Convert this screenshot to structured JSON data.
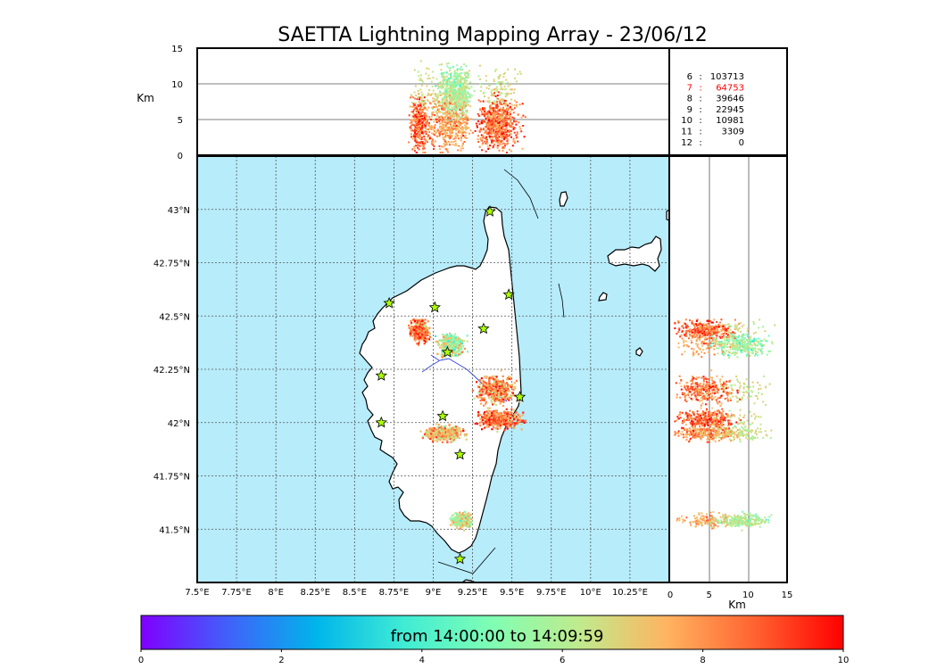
{
  "title": "SAETTA Lightning Mapping Array - 23/06/12",
  "colors": {
    "sea": "#b7ecfb",
    "land": "#ffffff",
    "coast": "#000000",
    "highlight": "#ff0000",
    "star": "#aaff00",
    "grid": "#555555"
  },
  "stats": [
    {
      "stations": "6",
      "count": "103713",
      "highlight": false
    },
    {
      "stations": "7",
      "count": "64753",
      "highlight": true
    },
    {
      "stations": "8",
      "count": "39646",
      "highlight": false
    },
    {
      "stations": "9",
      "count": "22945",
      "highlight": false
    },
    {
      "stations": "10",
      "count": "10981",
      "highlight": false
    },
    {
      "stations": "11",
      "count": "3309",
      "highlight": false
    },
    {
      "stations": "12",
      "count": "0",
      "highlight": false
    }
  ],
  "colorbar": {
    "label": "from 14:00:00 to 14:09:59",
    "ticks": [
      "0",
      "2",
      "4",
      "6",
      "8",
      "10"
    ],
    "range": [
      0,
      10
    ],
    "colors": [
      "#7f00ff",
      "#4062fa",
      "#00b5eb",
      "#40ecd4",
      "#80feb3",
      "#c0eb8d",
      "#ffb360",
      "#ff6230",
      "#ff0000"
    ]
  },
  "chart_data": [
    {
      "type": "scatter",
      "panel": "map (plan view)",
      "xlabel": "",
      "ylabel": "",
      "xlim": [
        7.5,
        10.5
      ],
      "ylim": [
        41.25,
        43.25
      ],
      "x_ticks": [
        7.5,
        7.75,
        8.0,
        8.25,
        8.5,
        8.75,
        9.0,
        9.25,
        9.5,
        9.75,
        10.0,
        10.25
      ],
      "x_tick_labels": [
        "7.5°E",
        "7.75°E",
        "8°E",
        "8.25°E",
        "8.5°E",
        "8.75°E",
        "9°E",
        "9.25°E",
        "9.5°E",
        "9.75°E",
        "10°E",
        "10.25°E"
      ],
      "y_ticks": [
        41.5,
        41.75,
        42.0,
        42.25,
        42.5,
        42.75,
        43.0
      ],
      "y_tick_labels": [
        "41.5°N",
        "41.75°N",
        "42°N",
        "42.25°N",
        "42.5°N",
        "42.75°N",
        "43°N"
      ],
      "grid": true,
      "stations": [
        [
          9.36,
          42.99
        ],
        [
          8.72,
          42.56
        ],
        [
          9.01,
          42.54
        ],
        [
          9.48,
          42.6
        ],
        [
          9.32,
          42.44
        ],
        [
          9.09,
          42.33
        ],
        [
          8.67,
          42.22
        ],
        [
          8.67,
          42.0
        ],
        [
          9.06,
          42.03
        ],
        [
          9.55,
          42.12
        ],
        [
          9.17,
          41.85
        ],
        [
          9.17,
          41.36
        ]
      ],
      "clusters": [
        {
          "lon": [
            8.83,
            8.98
          ],
          "lat": [
            42.37,
            42.5
          ],
          "time": 8.5
        },
        {
          "lon": [
            9.0,
            9.22
          ],
          "lat": [
            42.3,
            42.43
          ],
          "time": 6.0
        },
        {
          "lon": [
            9.24,
            9.55
          ],
          "lat": [
            42.07,
            42.25
          ],
          "time": 8.0
        },
        {
          "lon": [
            9.25,
            9.6
          ],
          "lat": [
            41.96,
            42.08
          ],
          "time": 8.5
        },
        {
          "lon": [
            8.9,
            9.22
          ],
          "lat": [
            41.91,
            42.0
          ],
          "time": 7.5
        },
        {
          "lon": [
            9.1,
            9.25
          ],
          "lat": [
            41.5,
            41.59
          ],
          "time": 6.5
        }
      ]
    },
    {
      "type": "scatter",
      "panel": "longitude-altitude",
      "xlim": [
        7.5,
        10.5
      ],
      "ylim": [
        0,
        15
      ],
      "ylabel": "Km",
      "y_ticks": [
        0,
        5,
        10,
        15
      ],
      "y_tick_labels": [
        "0",
        "5",
        "10",
        "15"
      ],
      "grid_lines": [
        5,
        10
      ]
    },
    {
      "type": "scatter",
      "panel": "altitude-latitude",
      "xlim": [
        0,
        15
      ],
      "ylim": [
        41.25,
        43.25
      ],
      "xlabel": "Km",
      "x_ticks": [
        0,
        5,
        10,
        15
      ],
      "x_tick_labels": [
        "0",
        "5",
        "10",
        "15"
      ],
      "grid_lines": [
        5,
        10
      ]
    }
  ]
}
